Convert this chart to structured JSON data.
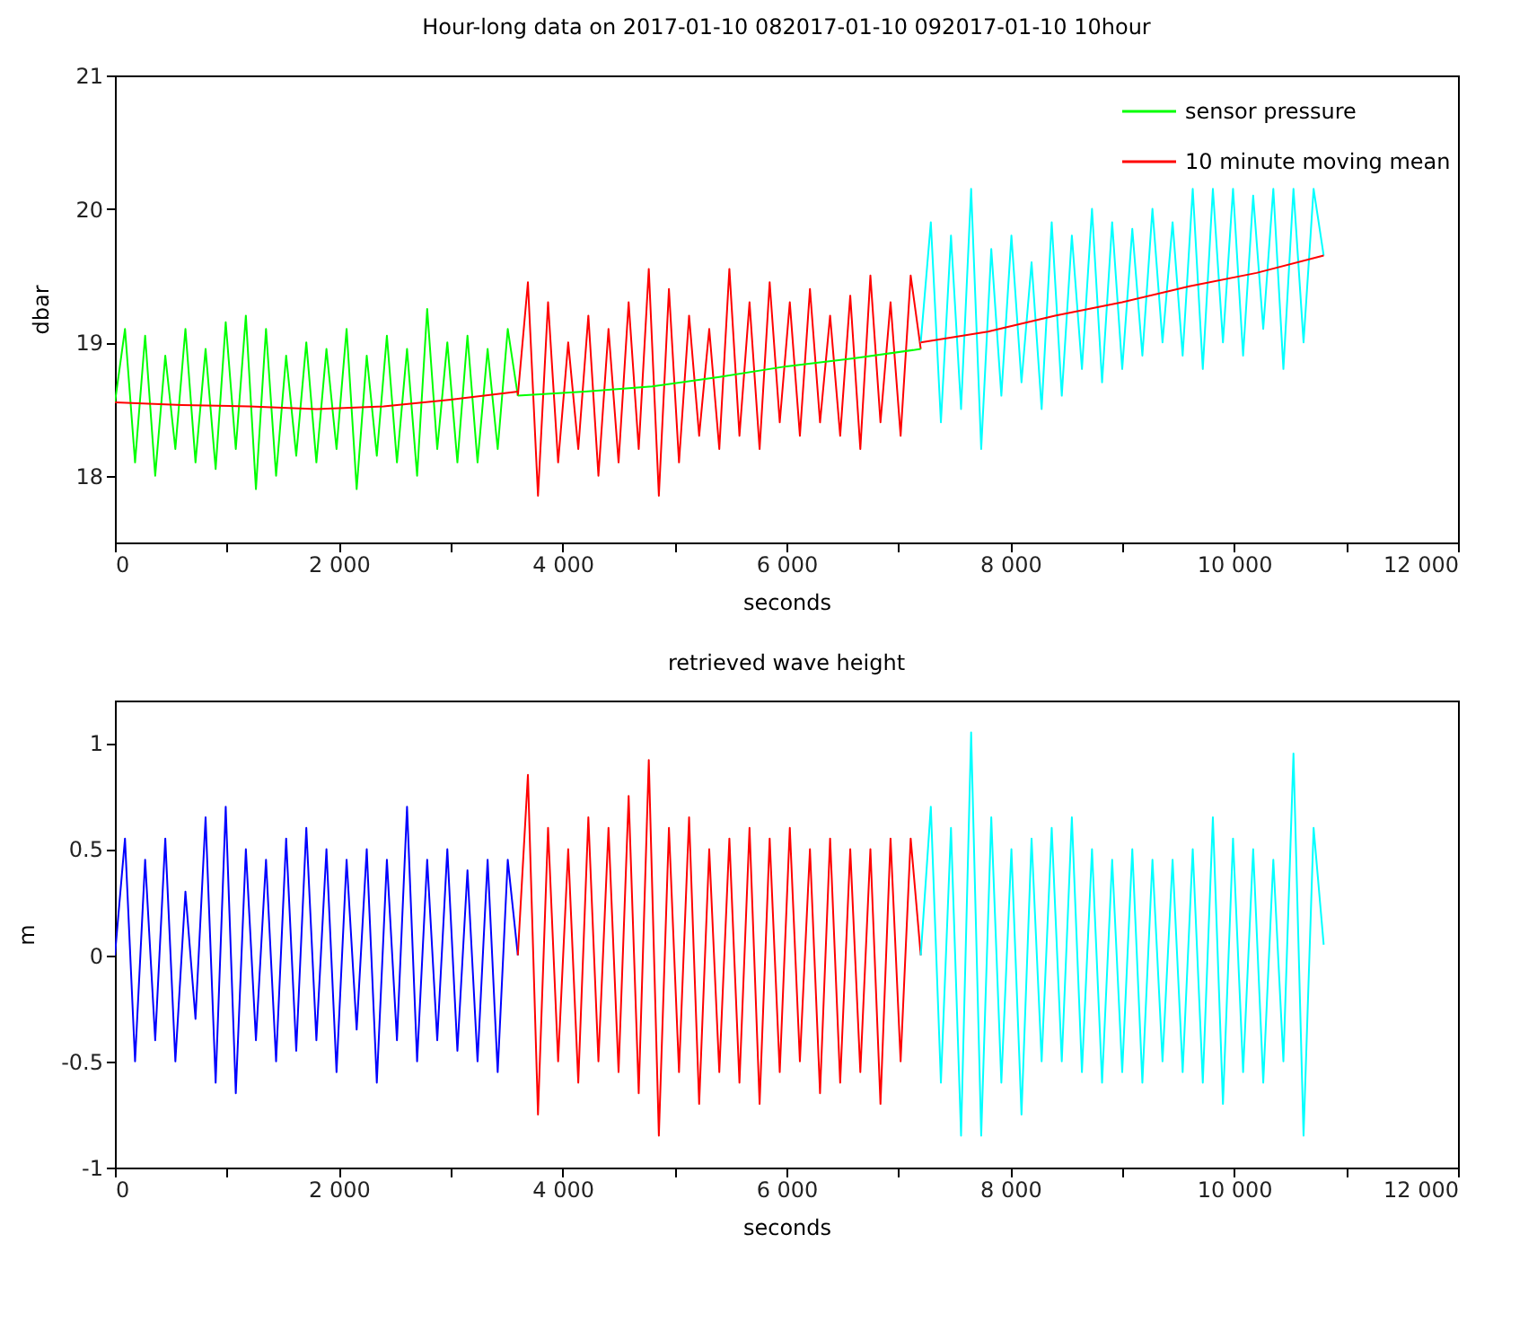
{
  "chart_data": [
    {
      "type": "line",
      "title": "Hour-long data on 2017-01-10 082017-01-10 092017-01-10 10hour",
      "xlabel": "seconds",
      "ylabel": "dbar",
      "xlim": [
        0,
        12000
      ],
      "xticks": [
        0,
        {
          "value": 1000,
          "label": null
        },
        {
          "value": 2000,
          "label": "2 000"
        },
        {
          "value": 3000,
          "label": null
        },
        {
          "value": 4000,
          "label": "4 000"
        },
        {
          "value": 5000,
          "label": null
        },
        {
          "value": 6000,
          "label": "6 000"
        },
        {
          "value": 7000,
          "label": null
        },
        {
          "value": 8000,
          "label": "8 000"
        },
        {
          "value": 9000,
          "label": null
        },
        {
          "value": 10000,
          "label": "10 000"
        },
        {
          "value": 11000,
          "label": null
        },
        {
          "value": 12000,
          "label": "12 000"
        }
      ],
      "ylim": [
        17.5,
        21
      ],
      "yticks": [
        18,
        19,
        20,
        21
      ],
      "legend": "top right",
      "series": [
        {
          "name": "sensor pressure",
          "color": "#00ff00",
          "x": [
            0,
            90,
            180,
            270,
            360,
            450,
            540,
            630,
            720,
            810,
            900,
            990,
            1080,
            1170,
            1260,
            1350,
            1440,
            1530,
            1620,
            1710,
            1800,
            1890,
            1980,
            2070,
            2160,
            2250,
            2340,
            2430,
            2520,
            2610,
            2700,
            2790,
            2880,
            2970,
            3060,
            3150,
            3240,
            3330,
            3420,
            3510,
            3600
          ],
          "values": [
            18.55,
            19.1,
            18.1,
            19.05,
            18.0,
            18.9,
            18.2,
            19.1,
            18.1,
            18.95,
            18.05,
            19.15,
            18.2,
            19.2,
            17.9,
            19.1,
            18.0,
            18.9,
            18.15,
            19.0,
            18.1,
            18.95,
            18.2,
            19.1,
            17.9,
            18.9,
            18.15,
            19.05,
            18.1,
            18.95,
            18.0,
            19.25,
            18.2,
            19.0,
            18.1,
            19.05,
            18.1,
            18.95,
            18.2,
            19.1,
            18.6
          ]
        },
        {
          "color": "#ff0000",
          "x": [
            3600,
            3690,
            3780,
            3870,
            3960,
            4050,
            4140,
            4230,
            4320,
            4410,
            4500,
            4590,
            4680,
            4770,
            4860,
            4950,
            5040,
            5130,
            5220,
            5310,
            5400,
            5490,
            5580,
            5670,
            5760,
            5850,
            5940,
            6030,
            6120,
            6210,
            6300,
            6390,
            6480,
            6570,
            6660,
            6750,
            6840,
            6930,
            7020,
            7110,
            7200
          ],
          "values": [
            18.6,
            19.45,
            17.85,
            19.3,
            18.1,
            19.0,
            18.2,
            19.2,
            18.0,
            19.1,
            18.1,
            19.3,
            18.2,
            19.55,
            17.85,
            19.4,
            18.1,
            19.2,
            18.3,
            19.1,
            18.2,
            19.55,
            18.3,
            19.3,
            18.2,
            19.45,
            18.4,
            19.3,
            18.3,
            19.4,
            18.4,
            19.2,
            18.3,
            19.35,
            18.2,
            19.5,
            18.4,
            19.3,
            18.3,
            19.5,
            18.95
          ]
        },
        {
          "color": "#00ffff",
          "x": [
            7200,
            7290,
            7380,
            7470,
            7560,
            7650,
            7740,
            7830,
            7920,
            8010,
            8100,
            8190,
            8280,
            8370,
            8460,
            8550,
            8640,
            8730,
            8820,
            8910,
            9000,
            9090,
            9180,
            9270,
            9360,
            9450,
            9540,
            9630,
            9720,
            9810,
            9900,
            9990,
            10080,
            10170,
            10260,
            10350,
            10440,
            10530,
            10620,
            10710,
            10800
          ],
          "values": [
            19.0,
            19.9,
            18.4,
            19.8,
            18.5,
            20.15,
            18.2,
            19.7,
            18.6,
            19.8,
            18.7,
            19.6,
            18.5,
            19.9,
            18.6,
            19.8,
            18.8,
            20.0,
            18.7,
            19.9,
            18.8,
            19.85,
            18.9,
            20.0,
            19.0,
            19.9,
            18.9,
            20.15,
            18.8,
            20.15,
            19.0,
            20.15,
            18.9,
            20.1,
            19.1,
            20.15,
            18.8,
            20.15,
            19.0,
            20.15,
            19.65
          ]
        },
        {
          "name": "10 minute moving mean",
          "color": "#ff0000",
          "x": [
            0,
            600,
            1200,
            1800,
            2400,
            3000,
            3600
          ],
          "values": [
            18.55,
            18.53,
            18.52,
            18.5,
            18.52,
            18.57,
            18.63
          ]
        },
        {
          "color": "#00ff00",
          "x": [
            3600,
            4200,
            4800,
            5400,
            6000,
            6600,
            7200
          ],
          "values": [
            18.6,
            18.63,
            18.67,
            18.74,
            18.82,
            18.88,
            18.95
          ]
        },
        {
          "color": "#ff0000",
          "x": [
            7200,
            7800,
            8400,
            9000,
            9600,
            10200,
            10800
          ],
          "values": [
            19.0,
            19.08,
            19.2,
            19.3,
            19.42,
            19.52,
            19.65
          ]
        }
      ]
    },
    {
      "type": "line",
      "title": "retrieved wave height",
      "xlabel": "seconds",
      "ylabel": "m",
      "xlim": [
        0,
        12000
      ],
      "xticks": [
        0,
        {
          "value": 1000,
          "label": null
        },
        {
          "value": 2000,
          "label": "2 000"
        },
        {
          "value": 3000,
          "label": null
        },
        {
          "value": 4000,
          "label": "4 000"
        },
        {
          "value": 5000,
          "label": null
        },
        {
          "value": 6000,
          "label": "6 000"
        },
        {
          "value": 7000,
          "label": null
        },
        {
          "value": 8000,
          "label": "8 000"
        },
        {
          "value": 9000,
          "label": null
        },
        {
          "value": 10000,
          "label": "10 000"
        },
        {
          "value": 11000,
          "label": null
        },
        {
          "value": 12000,
          "label": "12 000"
        }
      ],
      "ylim": [
        -1,
        1.2
      ],
      "yticks": [
        -1,
        -0.5,
        0,
        0.5,
        1
      ],
      "series": [
        {
          "color": "#0000ff",
          "x": [
            0,
            90,
            180,
            270,
            360,
            450,
            540,
            630,
            720,
            810,
            900,
            990,
            1080,
            1170,
            1260,
            1350,
            1440,
            1530,
            1620,
            1710,
            1800,
            1890,
            1980,
            2070,
            2160,
            2250,
            2340,
            2430,
            2520,
            2610,
            2700,
            2790,
            2880,
            2970,
            3060,
            3150,
            3240,
            3330,
            3420,
            3510,
            3600
          ],
          "values": [
            0,
            0.55,
            -0.5,
            0.45,
            -0.4,
            0.55,
            -0.5,
            0.3,
            -0.3,
            0.65,
            -0.6,
            0.7,
            -0.65,
            0.5,
            -0.4,
            0.45,
            -0.5,
            0.55,
            -0.45,
            0.6,
            -0.4,
            0.5,
            -0.55,
            0.45,
            -0.35,
            0.5,
            -0.6,
            0.45,
            -0.4,
            0.7,
            -0.5,
            0.45,
            -0.4,
            0.5,
            -0.45,
            0.4,
            -0.5,
            0.45,
            -0.55,
            0.45,
            0
          ]
        },
        {
          "color": "#ff0000",
          "x": [
            3600,
            3690,
            3780,
            3870,
            3960,
            4050,
            4140,
            4230,
            4320,
            4410,
            4500,
            4590,
            4680,
            4770,
            4860,
            4950,
            5040,
            5130,
            5220,
            5310,
            5400,
            5490,
            5580,
            5670,
            5760,
            5850,
            5940,
            6030,
            6120,
            6210,
            6300,
            6390,
            6480,
            6570,
            6660,
            6750,
            6840,
            6930,
            7020,
            7110,
            7200
          ],
          "values": [
            0,
            0.85,
            -0.75,
            0.6,
            -0.5,
            0.5,
            -0.6,
            0.65,
            -0.5,
            0.6,
            -0.55,
            0.75,
            -0.65,
            0.92,
            -0.85,
            0.6,
            -0.55,
            0.65,
            -0.7,
            0.5,
            -0.55,
            0.55,
            -0.6,
            0.6,
            -0.7,
            0.55,
            -0.55,
            0.6,
            -0.5,
            0.5,
            -0.65,
            0.55,
            -0.6,
            0.5,
            -0.55,
            0.5,
            -0.7,
            0.55,
            -0.5,
            0.55,
            0
          ]
        },
        {
          "color": "#00ffff",
          "x": [
            7200,
            7290,
            7380,
            7470,
            7560,
            7650,
            7740,
            7830,
            7920,
            8010,
            8100,
            8190,
            8280,
            8370,
            8460,
            8550,
            8640,
            8730,
            8820,
            8910,
            9000,
            9090,
            9180,
            9270,
            9360,
            9450,
            9540,
            9630,
            9720,
            9810,
            9900,
            9990,
            10080,
            10170,
            10260,
            10350,
            10440,
            10530,
            10620,
            10710,
            10800
          ],
          "values": [
            0,
            0.7,
            -0.6,
            0.6,
            -0.85,
            1.05,
            -0.85,
            0.65,
            -0.6,
            0.5,
            -0.75,
            0.55,
            -0.5,
            0.6,
            -0.5,
            0.65,
            -0.55,
            0.5,
            -0.6,
            0.45,
            -0.55,
            0.5,
            -0.6,
            0.45,
            -0.5,
            0.45,
            -0.55,
            0.5,
            -0.6,
            0.65,
            -0.7,
            0.55,
            -0.55,
            0.5,
            -0.6,
            0.45,
            -0.5,
            0.95,
            -0.85,
            0.6,
            0.05
          ]
        }
      ]
    }
  ]
}
